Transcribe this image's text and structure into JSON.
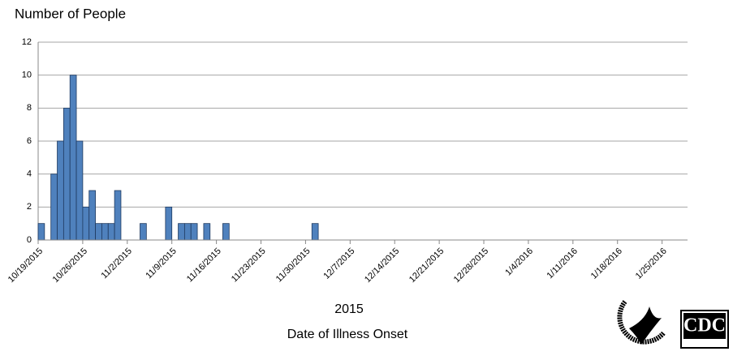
{
  "chart_data": {
    "type": "bar",
    "y_axis_label": "Number of People",
    "x_axis_year": "2015",
    "x_axis_label": "Date of Illness Onset",
    "x": [
      "10/19/2015",
      "10/21/2015",
      "10/22/2015",
      "10/23/2015",
      "10/24/2015",
      "10/25/2015",
      "10/26/2015",
      "10/27/2015",
      "10/28/2015",
      "10/29/2015",
      "10/30/2015",
      "10/31/2015",
      "11/4/2015",
      "11/8/2015",
      "11/10/2015",
      "11/11/2015",
      "11/12/2015",
      "11/14/2015",
      "11/17/2015",
      "12/1/2015"
    ],
    "values": [
      1,
      4,
      6,
      8,
      10,
      6,
      2,
      3,
      1,
      1,
      1,
      3,
      1,
      2,
      1,
      1,
      1,
      1,
      1,
      1
    ],
    "color": "#4f81bd",
    "xlim": [
      "10/19/2015",
      "1/29/2016"
    ],
    "xticks": [
      "10/19/2015",
      "10/26/2015",
      "11/2/2015",
      "11/9/2015",
      "11/16/2015",
      "11/23/2015",
      "11/30/2015",
      "12/7/2015",
      "12/14/2015",
      "12/21/2015",
      "12/28/2015",
      "1/4/2016",
      "1/11/2016",
      "1/18/2016",
      "1/25/2016"
    ],
    "ylim": [
      0,
      12
    ],
    "yticks": [
      0,
      2,
      4,
      6,
      8,
      10,
      12
    ],
    "grid": true
  },
  "footer": {
    "logo": "CDC"
  }
}
